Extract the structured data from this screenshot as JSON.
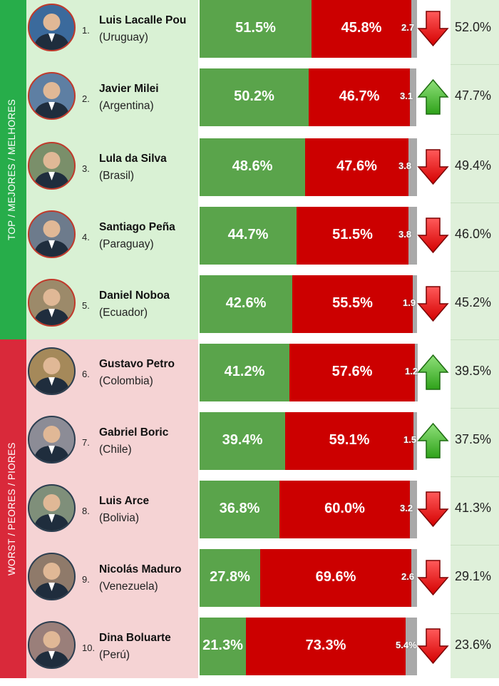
{
  "groups": {
    "top_label": "TOP / MEJORES / MELHORES",
    "worst_label": "WORST / PEORES / PIORES"
  },
  "chart_data": {
    "type": "bar",
    "stacked": true,
    "orientation": "horizontal",
    "categories": [
      "Luis Lacalle Pou",
      "Javier Milei",
      "Lula da Silva",
      "Santiago Peña",
      "Daniel Noboa",
      "Gustavo Petro",
      "Gabriel Boric",
      "Luis Arce",
      "Nicolás Maduro",
      "Dina Boluarte"
    ],
    "series": [
      {
        "values": [
          51.5,
          50.2,
          48.6,
          44.7,
          42.6,
          41.2,
          39.4,
          36.8,
          27.8,
          21.3
        ],
        "color": "#5aa44b"
      },
      {
        "values": [
          45.8,
          46.7,
          47.6,
          51.5,
          55.5,
          57.6,
          59.1,
          60.0,
          69.6,
          73.3
        ],
        "color": "#cc0000"
      },
      {
        "values": [
          2.7,
          3.1,
          3.8,
          3.8,
          1.9,
          1.2,
          1.5,
          3.2,
          2.6,
          5.4
        ],
        "color": "#a9a9a9"
      }
    ]
  },
  "rows": [
    {
      "rank": "1.",
      "name": "Luis Lacalle Pou",
      "country": "(Uruguay)",
      "green_label": "51.5%",
      "red_label": "45.8%",
      "other_label": "2.7",
      "trend": "down",
      "previous": 52.0,
      "previous_label": "52.0%",
      "avatar_bg": "#3b6a9c"
    },
    {
      "rank": "2.",
      "name": "Javier Milei",
      "country": "(Argentina)",
      "green_label": "50.2%",
      "red_label": "46.7%",
      "other_label": "3.1",
      "trend": "up",
      "previous": 47.7,
      "previous_label": "47.7%",
      "avatar_bg": "#5e7fa3"
    },
    {
      "rank": "3.",
      "name": "Lula da Silva",
      "country": "(Brasil)",
      "green_label": "48.6%",
      "red_label": "47.6%",
      "other_label": "3.8",
      "trend": "down",
      "previous": 49.4,
      "previous_label": "49.4%",
      "avatar_bg": "#7a8f6a"
    },
    {
      "rank": "4.",
      "name": "Santiago Peña",
      "country": "(Paraguay)",
      "green_label": "44.7%",
      "red_label": "51.5%",
      "other_label": "3.8",
      "trend": "down",
      "previous": 46.0,
      "previous_label": "46.0%",
      "avatar_bg": "#6d7b8c"
    },
    {
      "rank": "5.",
      "name": "Daniel Noboa",
      "country": "(Ecuador)",
      "green_label": "42.6%",
      "red_label": "55.5%",
      "other_label": "1.9",
      "trend": "down",
      "previous": 45.2,
      "previous_label": "45.2%",
      "avatar_bg": "#9c8a6a"
    },
    {
      "rank": "6.",
      "name": "Gustavo Petro",
      "country": "(Colombia)",
      "green_label": "41.2%",
      "red_label": "57.6%",
      "other_label": "1.2",
      "trend": "up",
      "previous": 39.5,
      "previous_label": "39.5%",
      "avatar_bg": "#a5895a"
    },
    {
      "rank": "7.",
      "name": "Gabriel Boric",
      "country": "(Chile)",
      "green_label": "39.4%",
      "red_label": "59.1%",
      "other_label": "1.5",
      "trend": "up",
      "previous": 37.5,
      "previous_label": "37.5%",
      "avatar_bg": "#8c8c96"
    },
    {
      "rank": "8.",
      "name": "Luis Arce",
      "country": "(Bolivia)",
      "green_label": "36.8%",
      "red_label": "60.0%",
      "other_label": "3.2",
      "trend": "down",
      "previous": 41.3,
      "previous_label": "41.3%",
      "avatar_bg": "#7f8f7a"
    },
    {
      "rank": "9.",
      "name": "Nicolás Maduro",
      "country": "(Venezuela)",
      "green_label": "27.8%",
      "red_label": "69.6%",
      "other_label": "2.6",
      "trend": "down",
      "previous": 29.1,
      "previous_label": "29.1%",
      "avatar_bg": "#8f7a6a"
    },
    {
      "rank": "10.",
      "name": "Dina Boluarte",
      "country": "(Perú)",
      "green_label": "21.3%",
      "red_label": "73.3%",
      "other_label": "5.4%",
      "trend": "down",
      "previous": 23.6,
      "previous_label": "23.6%",
      "avatar_bg": "#9a7f7a"
    }
  ],
  "colors": {
    "approve": "#5aa44b",
    "disapprove": "#cc0000",
    "other": "#a9a9a9",
    "arrow_up": "#2fa21a",
    "arrow_down": "#d40000",
    "top_band": "#27ad4a",
    "worst_band": "#d9293a"
  }
}
